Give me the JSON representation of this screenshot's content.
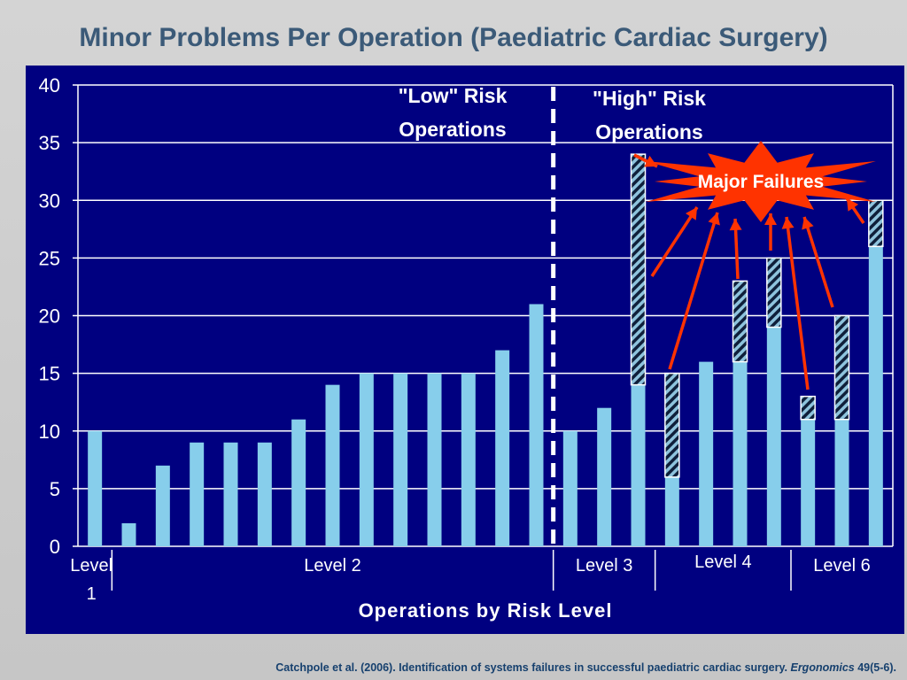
{
  "slide": {
    "title": "Minor Problems Per Operation (Paediatric Cardiac Surgery)",
    "citation_main": "Catchpole et al. (2006). Identification of systems failures in successful paediatric cardiac surgery.",
    "citation_journal": "Ergonomics",
    "citation_issue": "49(5-6)."
  },
  "chart_data": {
    "type": "bar",
    "stacked": true,
    "xlabel": "Operations by Risk Level",
    "ylabel": "",
    "ylim": [
      0,
      40
    ],
    "yticks": [
      0,
      5,
      10,
      15,
      20,
      25,
      30,
      35,
      40
    ],
    "grid": true,
    "values": [
      10,
      2,
      7,
      9,
      9,
      9,
      11,
      14,
      15,
      15,
      15,
      15,
      17,
      21,
      10,
      12,
      14,
      6,
      16,
      16,
      19,
      11,
      11,
      26
    ],
    "major_failures": [
      0,
      0,
      0,
      0,
      0,
      0,
      0,
      0,
      0,
      0,
      0,
      0,
      0,
      0,
      0,
      0,
      20,
      9,
      0,
      7,
      6,
      2,
      9,
      4
    ],
    "groups": [
      {
        "label": "Level 1",
        "start": 0,
        "end": 0
      },
      {
        "label": "Level 2",
        "start": 1,
        "end": 13
      },
      {
        "label": "Level 3",
        "start": 14,
        "end": 16
      },
      {
        "label": "Level 4",
        "start": 17,
        "end": 20
      },
      {
        "label": "Level 6",
        "start": 21,
        "end": 23
      }
    ],
    "annotations": {
      "low_risk": "\"Low\" Risk Operations",
      "high_risk": "\"High\" Risk Operations",
      "major_failures": "Major Failures"
    },
    "colors": {
      "background": "#000080",
      "bar": "#87ceeb",
      "hatch_dark": "#0f1f3a",
      "hatch_light": "#8ec3dd",
      "arrow": "#ff3300",
      "burst": "#ff3300",
      "text_light": "#ffffff",
      "annotation_text": "#ffffff"
    }
  }
}
